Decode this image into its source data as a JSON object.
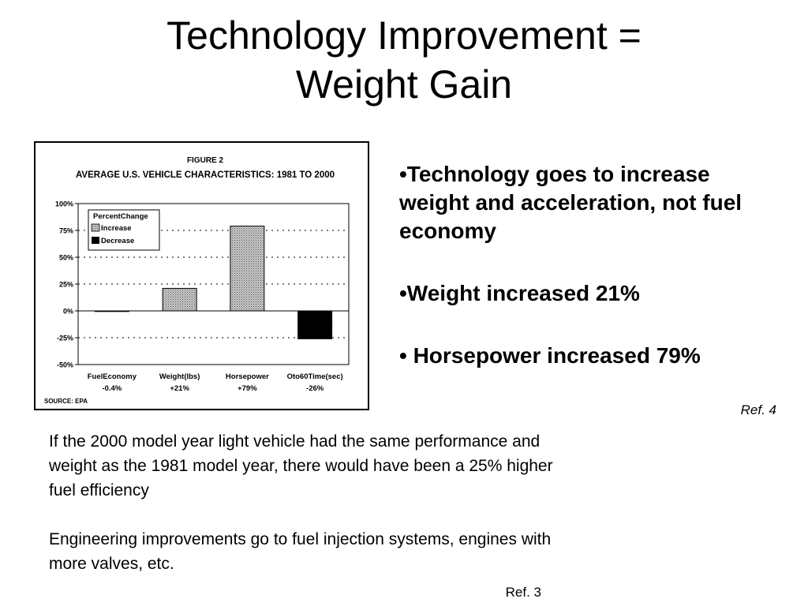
{
  "slide": {
    "title_line1": "Technology Improvement =",
    "title_line2": "Weight Gain",
    "bullets": [
      "•Technology goes to increase weight and acceleration, not fuel economy",
      "•Weight increased 21%",
      "• Horsepower increased 79%"
    ],
    "ref_right": "Ref. 4",
    "paragraph1": "If the 2000 model year light vehicle had the same performance and weight  as the 1981 model year, there would have been a 25% higher fuel efficiency",
    "paragraph2": "Engineering improvements go to fuel injection systems, engines with more valves, etc.",
    "ref_bottom": "Ref. 3"
  },
  "chart_data": {
    "type": "bar",
    "figure_label": "FIGURE 2",
    "title": "AVERAGE U.S. VEHICLE CHARACTERISTICS: 1981 TO 2000",
    "categories": [
      "FuelEconomy",
      "Weight(lbs)",
      "Horsepower",
      "Oto60Time(sec)"
    ],
    "category_value_labels": [
      "-0.4%",
      "+21%",
      "+79%",
      "-26%"
    ],
    "values": [
      -0.4,
      21,
      79,
      -26
    ],
    "ylim": [
      -50,
      100
    ],
    "yticks": [
      100,
      75,
      50,
      25,
      0,
      -25,
      -50
    ],
    "ytick_labels": [
      "100%",
      "75%",
      "50%",
      "25%",
      "0%",
      "-25%",
      "-50%"
    ],
    "grid": true,
    "legend": {
      "title": "PercentChange",
      "placement": "top-left",
      "items": [
        {
          "label": "Increase",
          "pattern": "stipple-gray"
        },
        {
          "label": "Decrease",
          "color": "#000000"
        }
      ]
    },
    "source": "SOURCE: EPA"
  }
}
